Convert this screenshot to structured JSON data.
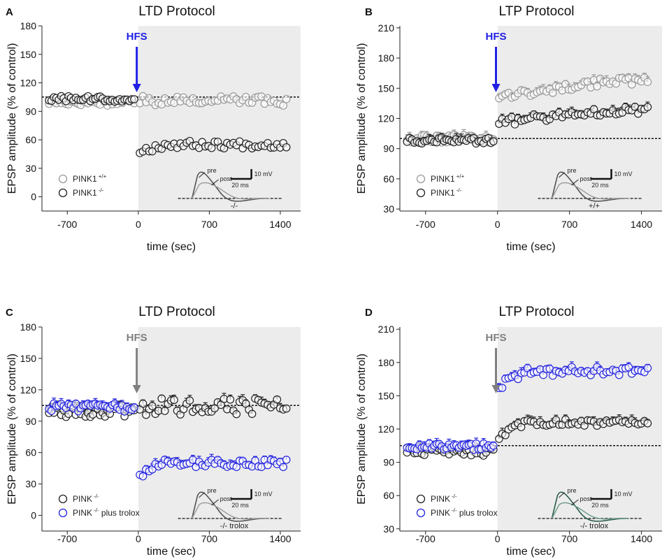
{
  "chart_data": [
    {
      "type": "scatter",
      "panel_label": "A",
      "title": "LTD Protocol",
      "xlabel": "time (sec)",
      "ylabel": "EPSP amplitude (% of control)",
      "xlim": [
        -950,
        1600
      ],
      "ylim": [
        -15,
        180
      ],
      "xticks": [
        -700,
        0,
        700,
        1400
      ],
      "yticks": [
        0,
        30,
        60,
        90,
        120,
        150,
        180
      ],
      "shade_from": 0,
      "dashed_line_y": 105,
      "arrow": {
        "label": "HFS",
        "x": -15,
        "color": "#1f1fe6"
      },
      "legend": [
        {
          "name": "PINK1",
          "sup": "+/+",
          "color": "#9a9a9a"
        },
        {
          "name": "PINK1",
          "sup": "-/-",
          "color": "#222222"
        }
      ],
      "inset": {
        "pre_label": "pre",
        "post_label": "post",
        "scale_v": "10 mV",
        "scale_t": "20 ms",
        "genotype": "-/-"
      },
      "series": [
        {
          "name": "PINK1+/+",
          "color": "#9a9a9a",
          "errorbars": false,
          "segments": [
            {
              "x_start": -880,
              "x_end": -40,
              "n": 36,
              "mean": 100,
              "jitter": 4
            },
            {
              "x_start": 15,
              "x_end": 1460,
              "n": 48,
              "mean": 101,
              "jitter": 5
            }
          ]
        },
        {
          "name": "PINK1-/-",
          "color": "#222222",
          "errorbars": false,
          "segments": [
            {
              "x_start": -880,
              "x_end": -40,
              "n": 36,
              "mean": 103,
              "jitter": 3
            },
            {
              "x_start": 15,
              "x_end": 1460,
              "n": 48,
              "mean": 55,
              "start": 48,
              "jitter": 4
            }
          ]
        }
      ]
    },
    {
      "type": "scatter",
      "panel_label": "B",
      "title": "LTP Protocol",
      "xlabel": "time (sec)",
      "ylabel": "EPSP amplitude (% of control)",
      "xlim": [
        -950,
        1600
      ],
      "ylim": [
        28,
        212
      ],
      "xticks": [
        -700,
        0,
        700,
        1400
      ],
      "yticks": [
        30,
        60,
        90,
        120,
        150,
        180,
        210
      ],
      "shade_from": 0,
      "dashed_line_y": 100,
      "arrow": {
        "label": "HFS",
        "x": -15,
        "color": "#1f1fe6"
      },
      "legend": [
        {
          "name": "PINK1",
          "sup": "+/+",
          "color": "#9a9a9a"
        },
        {
          "name": "PINK1",
          "sup": "-/-",
          "color": "#222222"
        }
      ],
      "inset": {
        "pre_label": "pre",
        "post_label": "post",
        "scale_v": "10 mV",
        "scale_t": "20 ms",
        "genotype": "+/+"
      },
      "series": [
        {
          "name": "PINK1+/+",
          "color": "#9a9a9a",
          "errorbars": true,
          "segments": [
            {
              "x_start": -880,
              "x_end": -40,
              "n": 36,
              "mean": 100,
              "jitter": 4
            },
            {
              "x_start": 15,
              "x_end": 1460,
              "n": 48,
              "mean": 148,
              "start": 140,
              "end": 157,
              "jitter": 4
            }
          ]
        },
        {
          "name": "PINK1-/-",
          "color": "#222222",
          "errorbars": true,
          "segments": [
            {
              "x_start": -880,
              "x_end": -40,
              "n": 36,
              "mean": 98,
              "jitter": 3
            },
            {
              "x_start": 15,
              "x_end": 1460,
              "n": 48,
              "mean": 127,
              "start": 115,
              "end": 128,
              "jitter": 4
            }
          ]
        }
      ]
    },
    {
      "type": "scatter",
      "panel_label": "C",
      "title": "LTD Protocol",
      "xlabel": "time (sec)",
      "ylabel": "EPSP amplitude (% of control)",
      "xlim": [
        -950,
        1600
      ],
      "ylim": [
        -15,
        180
      ],
      "xticks": [
        -700,
        0,
        700,
        1400
      ],
      "yticks": [
        0,
        30,
        60,
        90,
        120,
        150,
        180
      ],
      "shade_from": 0,
      "dashed_line_y": 105,
      "arrow": {
        "label": "HFS",
        "x": -15,
        "color": "#7f7f7f"
      },
      "legend": [
        {
          "name": "PINK",
          "sup": "-/-",
          "suffix": "",
          "color": "#222222"
        },
        {
          "name": "PINK",
          "sup": "-/-",
          "suffix": " plus trolox",
          "color": "#2626e0"
        }
      ],
      "inset": {
        "pre_label": "pre",
        "post_label": "post",
        "scale_v": "10 mV",
        "scale_t": "20 ms",
        "genotype": "-/- trolox"
      },
      "series": [
        {
          "name": "PINK-/-",
          "color": "#222222",
          "errorbars": true,
          "segments": [
            {
              "x_start": -880,
              "x_end": -40,
              "n": 36,
              "mean": 100,
              "jitter": 6
            },
            {
              "x_start": 15,
              "x_end": 1460,
              "n": 48,
              "mean": 104,
              "jitter": 8
            }
          ]
        },
        {
          "name": "PINK-/- plus trolox",
          "color": "#2626e0",
          "errorbars": true,
          "segments": [
            {
              "x_start": -880,
              "x_end": -40,
              "n": 36,
              "mean": 103,
              "jitter": 4
            },
            {
              "x_start": 15,
              "x_end": 1460,
              "n": 48,
              "mean": 50,
              "start": 40,
              "jitter": 4
            }
          ]
        }
      ]
    },
    {
      "type": "scatter",
      "panel_label": "D",
      "title": "LTP Protocol",
      "xlabel": "time (sec)",
      "ylabel": "EPSP amplitude (% of control)",
      "xlim": [
        -950,
        1600
      ],
      "ylim": [
        28,
        212
      ],
      "xticks": [
        -700,
        0,
        700,
        1400
      ],
      "yticks": [
        30,
        60,
        90,
        120,
        150,
        180,
        210
      ],
      "shade_from": 0,
      "dashed_line_y": 105,
      "arrow": {
        "label": "HFS",
        "x": -15,
        "color": "#7f7f7f"
      },
      "legend": [
        {
          "name": "PINK",
          "sup": "-/-",
          "suffix": "",
          "color": "#222222"
        },
        {
          "name": "PINK",
          "sup": "-/-",
          "suffix": " plus trolox",
          "color": "#2626e0"
        }
      ],
      "inset": {
        "pre_label": "pre",
        "post_label": "post",
        "scale_v": "10 mV",
        "scale_t": "20 ms",
        "genotype": "-/- trolox"
      },
      "series": [
        {
          "name": "PINK-/-",
          "color": "#222222",
          "errorbars": true,
          "segments": [
            {
              "x_start": -880,
              "x_end": -40,
              "n": 36,
              "mean": 100,
              "jitter": 4
            },
            {
              "x_start": 15,
              "x_end": 1460,
              "n": 48,
              "mean": 126,
              "start": 112,
              "jitter": 3
            }
          ]
        },
        {
          "name": "PINK-/- plus trolox",
          "color": "#2626e0",
          "errorbars": true,
          "segments": [
            {
              "x_start": -880,
              "x_end": -40,
              "n": 36,
              "mean": 104,
              "jitter": 3
            },
            {
              "x_start": 15,
              "x_end": 1460,
              "n": 48,
              "mean": 172,
              "start": 158,
              "jitter": 4
            }
          ]
        }
      ]
    }
  ]
}
